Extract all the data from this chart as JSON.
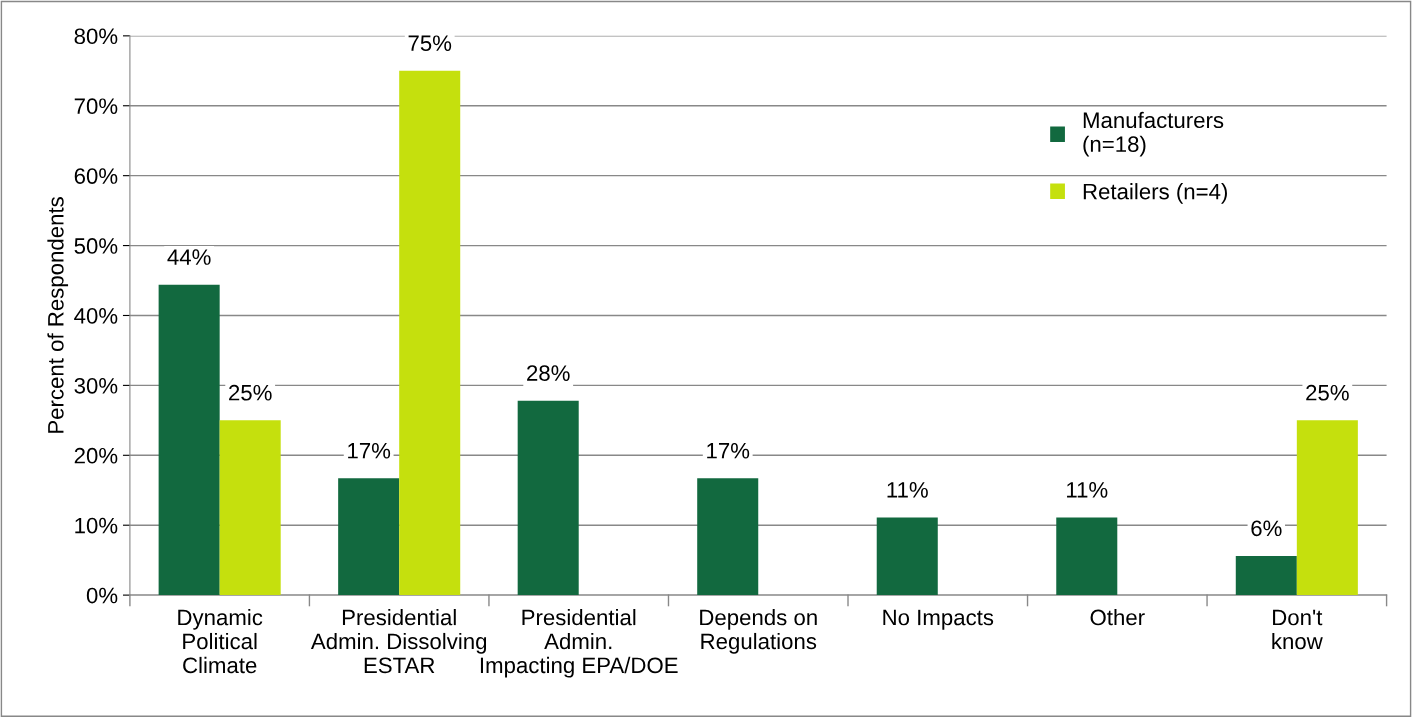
{
  "chart_data": {
    "type": "bar",
    "ylabel": "Percent of Respondents",
    "categories": [
      "Dynamic\nPolitical\nClimate",
      "Presidential\nAdmin. Dissolving\nESTAR",
      "Presidential\nAdmin.\nImpacting EPA/DOE",
      "Depends on\nRegulations",
      "No Impacts",
      "Other",
      "Don't\nknow"
    ],
    "series": [
      {
        "name": "Manufacturers\n(n=18)",
        "color": "#12693f",
        "values": [
          44.4,
          16.7,
          27.8,
          16.7,
          11.1,
          11.1,
          5.6
        ],
        "value_labels": [
          "44%",
          "17%",
          "28%",
          "17%",
          "11%",
          "11%",
          "6%"
        ]
      },
      {
        "name": "Retailers (n=4)",
        "color": "#c5e00d",
        "values": [
          25,
          75,
          null,
          null,
          null,
          null,
          25
        ],
        "value_labels": [
          "25%",
          "75%",
          null,
          null,
          null,
          null,
          "25%"
        ]
      }
    ],
    "ylim": [
      0,
      80
    ],
    "yticks": [
      {
        "value": 0,
        "label": "0%"
      },
      {
        "value": 10,
        "label": "10%"
      },
      {
        "value": 20,
        "label": "20%"
      },
      {
        "value": 30,
        "label": "30%"
      },
      {
        "value": 40,
        "label": "40%"
      },
      {
        "value": 50,
        "label": "50%"
      },
      {
        "value": 60,
        "label": "60%"
      },
      {
        "value": 70,
        "label": "70%"
      },
      {
        "value": 80,
        "label": "80%"
      }
    ],
    "grid": "y",
    "legend": "top right"
  }
}
